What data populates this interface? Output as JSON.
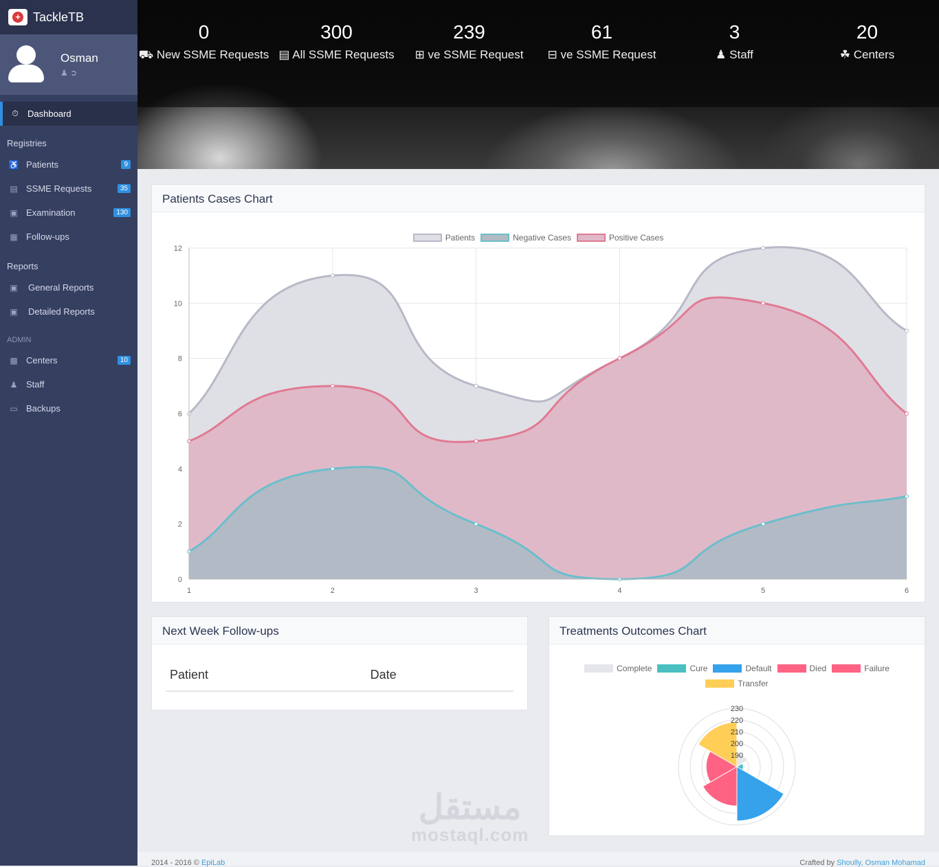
{
  "brand": {
    "name": "TackleTB"
  },
  "user": {
    "name": "Osman"
  },
  "sidebar": {
    "dashboard": "Dashboard",
    "registries": "Registries",
    "patients": "Patients",
    "patients_badge": "9",
    "ssme": "SSME Requests",
    "ssme_badge": "35",
    "examination": "Examination",
    "examination_badge": "130",
    "followups": "Follow-ups",
    "reports": "Reports",
    "general": "General Reports",
    "detailed": "Detailed Reports",
    "admin": "ADMIN",
    "centers": "Centers",
    "centers_badge": "10",
    "staff": "Staff",
    "backups": "Backups"
  },
  "stats": [
    {
      "num": "0",
      "label": "New SSME Requests",
      "icon": "ambulance-icon"
    },
    {
      "num": "300",
      "label": "All SSME Requests",
      "icon": "clipboard-icon"
    },
    {
      "num": "239",
      "label": "ve SSME Request",
      "icon": "plus-square-icon"
    },
    {
      "num": "61",
      "label": "ve SSME Request",
      "icon": "minus-square-icon"
    },
    {
      "num": "3",
      "label": "Staff",
      "icon": "users-icon"
    },
    {
      "num": "20",
      "label": "Centers",
      "icon": "hospital-icon"
    }
  ],
  "panels": {
    "cases_title": "Patients Cases Chart",
    "followups_title": "Next Week Follow-ups",
    "followups_col_patient": "Patient",
    "followups_col_date": "Date",
    "outcomes_title": "Treatments Outcomes Chart"
  },
  "chart_data": [
    {
      "type": "area",
      "x": [
        1,
        2,
        3,
        4,
        5,
        6
      ],
      "ylim": [
        0,
        12
      ],
      "yticks": [
        0,
        2,
        4,
        6,
        8,
        10,
        12
      ],
      "series": [
        {
          "name": "Patients",
          "values": [
            6,
            11,
            7,
            8,
            12,
            9
          ],
          "color": "#b7b9c7",
          "fill": "#dfe0e6"
        },
        {
          "name": "Positive Cases",
          "values": [
            5,
            7,
            5,
            8,
            10,
            6
          ],
          "color": "#e07a92",
          "fill": "#e0b9c9"
        },
        {
          "name": "Negative Cases",
          "values": [
            1,
            4,
            2,
            0,
            2,
            3
          ],
          "color": "#6cbecb",
          "fill": "#b2bac6"
        }
      ],
      "legend_order": [
        "Patients",
        "Negative Cases",
        "Positive Cases"
      ],
      "grid": true
    },
    {
      "type": "polarArea",
      "labels": [
        "Complete",
        "Cure",
        "Default",
        "Died",
        "Failure",
        "Transfer"
      ],
      "values": [
        197,
        191,
        236,
        222,
        214,
        227
      ],
      "colors": [
        "#e5e6ea",
        "#4bc0c0",
        "#36a2eb",
        "#ff6384",
        "#ff6384",
        "#ffce56"
      ],
      "rticks": [
        "190",
        "200",
        "210",
        "220",
        "230"
      ],
      "rlim": [
        185,
        240
      ]
    }
  ],
  "footer": {
    "left": "2014 - 2016 ©",
    "left_link": "EpiLab",
    "right": "Crafted by",
    "right_link": "Shoully, Osman Mohamad"
  },
  "watermark": {
    "ar": "مستقل",
    "en": "mostaql.com"
  }
}
